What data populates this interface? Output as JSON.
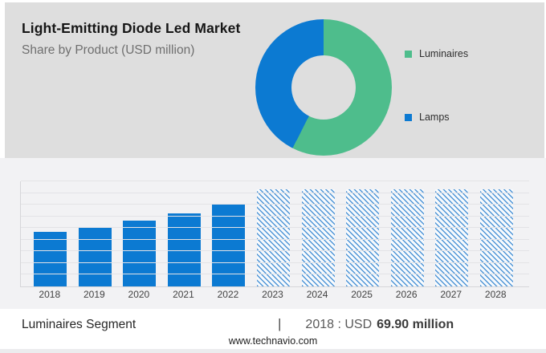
{
  "header": {
    "title": "Light-Emitting Diode Led Market",
    "subtitle": "Share by Product (USD million)"
  },
  "legend": {
    "items": [
      {
        "label": "Luminaires",
        "color": "#4ebd8c"
      },
      {
        "label": "Lamps",
        "color": "#0c7ad2"
      }
    ]
  },
  "chart_data": [
    {
      "type": "pie",
      "donut": true,
      "title": "Share by Product (USD million)",
      "labels": [
        "Luminaires",
        "Lamps"
      ],
      "values_pct": [
        57.5,
        42.5
      ],
      "colors": [
        "#4ebd8c",
        "#0c7ad2"
      ],
      "legend_position": "right",
      "start_angle_deg": 0,
      "direction": "clockwise"
    },
    {
      "type": "bar",
      "categories": [
        "2018",
        "2019",
        "2020",
        "2021",
        "2022",
        "2023",
        "2024",
        "2025",
        "2026",
        "2027",
        "2028"
      ],
      "values": [
        69.9,
        76.7,
        84.7,
        93.6,
        105.0,
        124.2,
        124.2,
        124.2,
        124.2,
        124.2,
        124.2
      ],
      "values_note": "2018 labeled as USD 69.90 million; 2019-2022 estimated from bar heights; 2023-2028 are undisclosed forecast bars drawn hatched at equal height",
      "forecast_start_index": 5,
      "bar_color": "#0c7ad2",
      "hatch_color": "#4f95d6",
      "hatch_gap_color": "#f7fafd",
      "ylim": [
        0,
        135
      ],
      "gridline_count": 9,
      "grid": true,
      "xlabel": "",
      "ylabel": ""
    }
  ],
  "footer": {
    "segment_label": "Luminaires Segment",
    "separator": "|",
    "stat_prefix": "2018 : USD",
    "stat_value": "69.90 million",
    "website": "www.technavio.com"
  },
  "colors": {
    "header_bg": "#dedede",
    "chart_section_bg": "#f2f2f4",
    "footer_bg": "#ffffff",
    "gridline": "#e3e3e6",
    "axis": "#d6d6d9"
  }
}
